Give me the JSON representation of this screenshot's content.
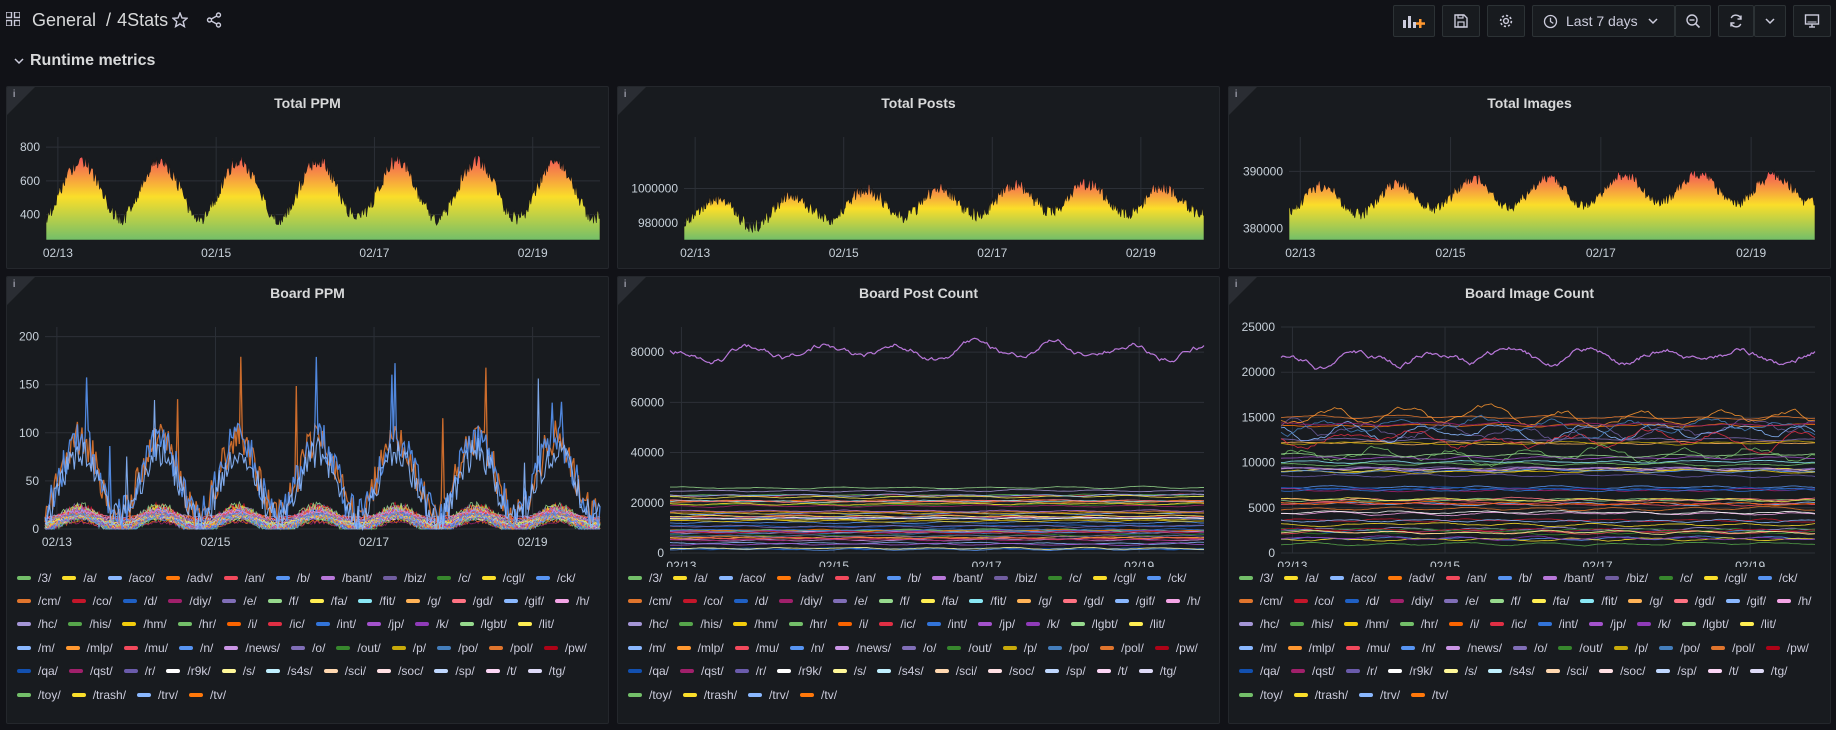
{
  "header": {
    "folder": "General",
    "separator": "/",
    "dashboard": "4Stats",
    "time_range": "Last 7 days"
  },
  "icons": {
    "apps": "apps-grid-icon",
    "star": "star-icon",
    "share": "share-icon",
    "add_panel": "add-panel-icon",
    "save": "save-icon",
    "settings": "gear-icon",
    "clock": "clock-icon",
    "zoom_out": "zoom-out-icon",
    "refresh": "refresh-icon",
    "chevron": "chevron-down-icon",
    "tv": "tv-mode-icon"
  },
  "row": {
    "title": "Runtime metrics"
  },
  "colors": {
    "background": "#111217",
    "panel": "#181b1f",
    "grad_low": "#73bf69",
    "grad_mid": "#fade2a",
    "grad_high": "#f2495c",
    "purple_series": "#b877d9"
  },
  "panels": {
    "total_ppm": {
      "title": "Total PPM",
      "chart_data": {
        "type": "area",
        "title": "Total PPM",
        "x_ticks": [
          "02/13",
          "02/15",
          "02/17",
          "02/19"
        ],
        "y_ticks": [
          "800",
          "600",
          "400"
        ],
        "ylim": [
          250,
          860
        ],
        "period_days": 1,
        "mean": 550,
        "amplitude": 170,
        "noise": 45
      }
    },
    "total_posts": {
      "title": "Total Posts",
      "chart_data": {
        "type": "area",
        "title": "Total Posts",
        "x_ticks": [
          "02/13",
          "02/15",
          "02/17",
          "02/19"
        ],
        "y_ticks": [
          "1000000",
          "980000"
        ],
        "ylim": [
          970000,
          1030000
        ],
        "period_days": 1,
        "mean": 992000,
        "amplitude": 8000,
        "trend": 8000,
        "noise": 4000
      }
    },
    "total_images": {
      "title": "Total Images",
      "chart_data": {
        "type": "area",
        "title": "Total Images",
        "x_ticks": [
          "02/13",
          "02/15",
          "02/17",
          "02/19"
        ],
        "y_ticks": [
          "390000",
          "380000"
        ],
        "ylim": [
          378000,
          396000
        ],
        "period_days": 1,
        "mean": 386500,
        "amplitude": 2500,
        "trend": 2000,
        "noise": 1000
      }
    },
    "board_ppm": {
      "title": "Board PPM",
      "chart_data": {
        "type": "line",
        "title": "Board PPM",
        "x_ticks": [
          "02/13",
          "02/15",
          "02/17",
          "02/19"
        ],
        "y_ticks": [
          "200",
          "150",
          "100",
          "50",
          "0"
        ],
        "ylim": [
          0,
          210
        ]
      }
    },
    "board_post_count": {
      "title": "Board Post Count",
      "chart_data": {
        "type": "line",
        "title": "Board Post Count",
        "x_ticks": [
          "02/13",
          "02/15",
          "02/17",
          "02/19"
        ],
        "y_ticks": [
          "80000",
          "60000",
          "40000",
          "20000",
          "0"
        ],
        "ylim": [
          0,
          90000
        ],
        "top_series_level": 78000
      }
    },
    "board_image_count": {
      "title": "Board Image Count",
      "chart_data": {
        "type": "line",
        "title": "Board Image Count",
        "x_ticks": [
          "02/13",
          "02/15",
          "02/17",
          "02/19"
        ],
        "y_ticks": [
          "25000",
          "20000",
          "15000",
          "10000",
          "5000",
          "0"
        ],
        "ylim": [
          0,
          25000
        ],
        "top_series_level": 21000
      }
    }
  },
  "legend": [
    {
      "label": "/3/",
      "color": "#73bf69"
    },
    {
      "label": "/a/",
      "color": "#fade2a"
    },
    {
      "label": "/aco/",
      "color": "#8ab8ff"
    },
    {
      "label": "/adv/",
      "color": "#ff780a"
    },
    {
      "label": "/an/",
      "color": "#f2495c"
    },
    {
      "label": "/b/",
      "color": "#5794f2"
    },
    {
      "label": "/bant/",
      "color": "#b877d9"
    },
    {
      "label": "/biz/",
      "color": "#705da0"
    },
    {
      "label": "/c/",
      "color": "#37872d"
    },
    {
      "label": "/cgl/",
      "color": "#fade2a"
    },
    {
      "label": "/ck/",
      "color": "#5794f2"
    },
    {
      "label": "/cm/",
      "color": "#e0752d"
    },
    {
      "label": "/co/",
      "color": "#c4162a"
    },
    {
      "label": "/d/",
      "color": "#1f60c4"
    },
    {
      "label": "/diy/",
      "color": "#a0206b"
    },
    {
      "label": "/e/",
      "color": "#806eb7"
    },
    {
      "label": "/f/",
      "color": "#96d98d"
    },
    {
      "label": "/fa/",
      "color": "#ffee52"
    },
    {
      "label": "/fit/",
      "color": "#8ae8f5"
    },
    {
      "label": "/g/",
      "color": "#ffb357"
    },
    {
      "label": "/gd/",
      "color": "#ff7383"
    },
    {
      "label": "/gif/",
      "color": "#8ab8ff"
    },
    {
      "label": "/h/",
      "color": "#f4a5e6"
    },
    {
      "label": "/hc/",
      "color": "#a495d6"
    },
    {
      "label": "/his/",
      "color": "#56a64b"
    },
    {
      "label": "/hm/",
      "color": "#f2cc0c"
    },
    {
      "label": "/hr/",
      "color": "#73bf69"
    },
    {
      "label": "/i/",
      "color": "#fa6400"
    },
    {
      "label": "/ic/",
      "color": "#e02f44"
    },
    {
      "label": "/int/",
      "color": "#3274d9"
    },
    {
      "label": "/jp/",
      "color": "#a352cc"
    },
    {
      "label": "/k/",
      "color": "#8f3bb8"
    },
    {
      "label": "/lgbt/",
      "color": "#96d98d"
    },
    {
      "label": "/lit/",
      "color": "#ffee52"
    },
    {
      "label": "/m/",
      "color": "#8ab8ff"
    },
    {
      "label": "/mlp/",
      "color": "#ff9830"
    },
    {
      "label": "/mu/",
      "color": "#f2495c"
    },
    {
      "label": "/n/",
      "color": "#5794f2"
    },
    {
      "label": "/news/",
      "color": "#ca95e5"
    },
    {
      "label": "/o/",
      "color": "#806eb7"
    },
    {
      "label": "/out/",
      "color": "#37872d"
    },
    {
      "label": "/p/",
      "color": "#c8aa0a"
    },
    {
      "label": "/po/",
      "color": "#447ebc"
    },
    {
      "label": "/pol/",
      "color": "#e0752d"
    },
    {
      "label": "/pw/",
      "color": "#ad0317"
    },
    {
      "label": "/qa/",
      "color": "#1250b0"
    },
    {
      "label": "/qst/",
      "color": "#a0206b"
    },
    {
      "label": "/r/",
      "color": "#6a5bab"
    },
    {
      "label": "/r9k/",
      "color": "#ffffff"
    },
    {
      "label": "/s/",
      "color": "#fff899"
    },
    {
      "label": "/s4s/",
      "color": "#c0f0ff"
    },
    {
      "label": "/sci/",
      "color": "#ffd8b0"
    },
    {
      "label": "/soc/",
      "color": "#ffe0e4"
    },
    {
      "label": "/sp/",
      "color": "#c0d8ff"
    },
    {
      "label": "/t/",
      "color": "#fcd6f5"
    },
    {
      "label": "/tg/",
      "color": "#dedaf7"
    },
    {
      "label": "/toy/",
      "color": "#73bf69"
    },
    {
      "label": "/trash/",
      "color": "#fade2a"
    },
    {
      "label": "/trv/",
      "color": "#8ab8ff"
    },
    {
      "label": "/tv/",
      "color": "#ff780a"
    }
  ]
}
